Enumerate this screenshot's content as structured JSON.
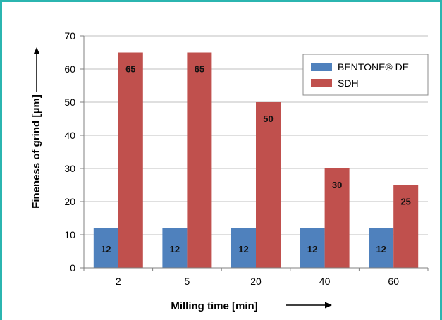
{
  "chart_data": {
    "type": "bar",
    "categories": [
      "2",
      "5",
      "20",
      "40",
      "60"
    ],
    "series": [
      {
        "name": "BENTONE® DE",
        "values": [
          12,
          12,
          12,
          12,
          12
        ],
        "color": "#4f81bd"
      },
      {
        "name": "SDH",
        "values": [
          65,
          65,
          50,
          30,
          25
        ],
        "color": "#c0504d"
      }
    ],
    "xlabel": "Milling time [min]",
    "ylabel": "Fineness of grind [μm]",
    "ylim": [
      0,
      70
    ],
    "yticks": [
      "0",
      "10",
      "20",
      "30",
      "40",
      "50",
      "60",
      "70"
    ],
    "grid": true,
    "legend_position": "top-right"
  },
  "frame_color": "#2bb5b0"
}
